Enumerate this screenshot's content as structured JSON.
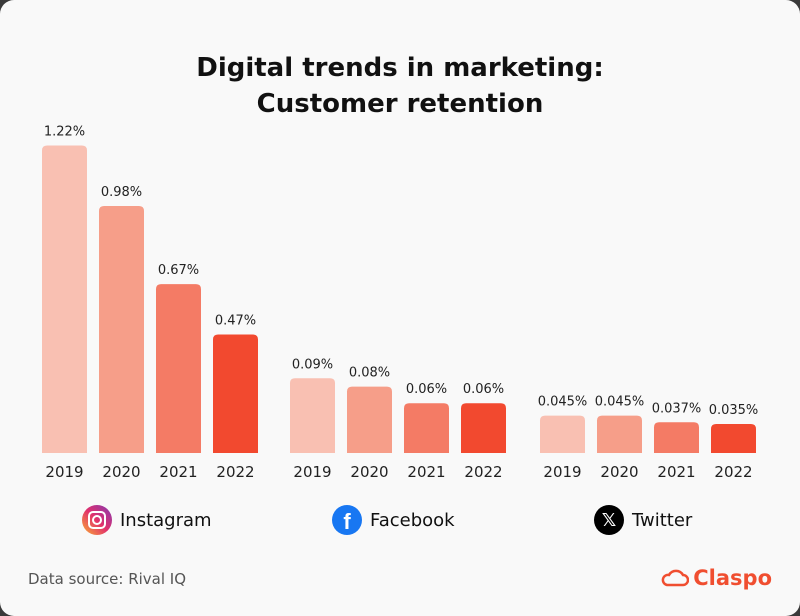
{
  "title_line1": "Digital trends in marketing:",
  "title_line2": "Customer retention",
  "source": "Data source: Rival IQ",
  "brand": "Claspo",
  "chart_data": {
    "type": "bar",
    "title": "Digital trends in marketing: Customer retention",
    "categories": [
      "2019",
      "2020",
      "2021",
      "2022"
    ],
    "colors": [
      "#f9c0b2",
      "#f69e89",
      "#f47b65",
      "#f2492f"
    ],
    "groups": [
      {
        "name": "Instagram",
        "icon": "instagram-icon",
        "values": [
          1.22,
          0.98,
          0.67,
          0.47
        ],
        "labels": [
          "1.22%",
          "0.98%",
          "0.67%",
          "0.47%"
        ]
      },
      {
        "name": "Facebook",
        "icon": "facebook-icon",
        "values": [
          0.09,
          0.08,
          0.06,
          0.06
        ],
        "labels": [
          "0.09%",
          "0.08%",
          "0.06%",
          "0.06%"
        ]
      },
      {
        "name": "Twitter",
        "icon": "x-icon",
        "values": [
          0.045,
          0.045,
          0.037,
          0.035
        ],
        "labels": [
          "0.045%",
          "0.045%",
          "0.037%",
          "0.035%"
        ]
      }
    ],
    "unit": "%",
    "grid": false
  }
}
